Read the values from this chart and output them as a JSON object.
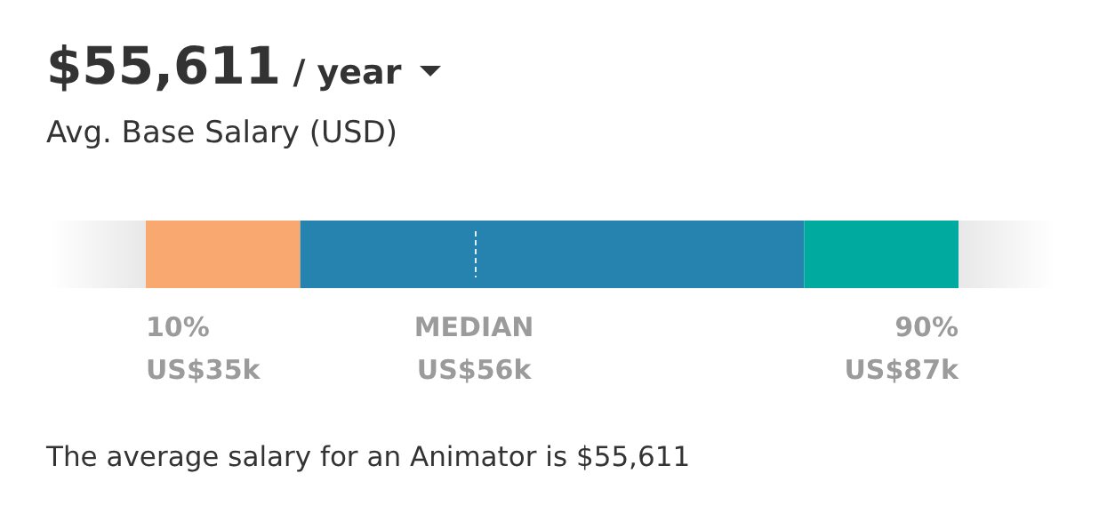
{
  "chart_data": {
    "type": "other",
    "title": "$55,611 / year",
    "subtitle": "Avg. Base Salary (USD)",
    "categories": [
      "10%",
      "MEDIAN",
      "90%"
    ],
    "values": [
      35000,
      56000,
      87000
    ],
    "value_labels": [
      "US$35k",
      "US$56k",
      "US$87k"
    ],
    "colors": [
      "#f9a86f",
      "#2683b0",
      "#00aa9f"
    ],
    "annotations": [
      "The average salary for an Animator is $55,611"
    ]
  }
}
